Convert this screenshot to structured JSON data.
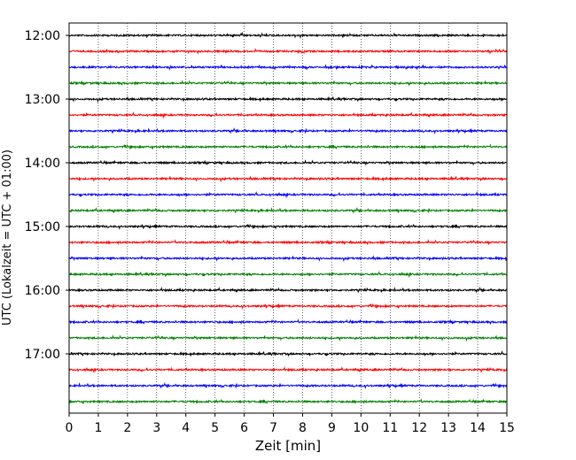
{
  "chart_data": {
    "type": "line",
    "title": "",
    "xlabel": "Zeit  [min]",
    "ylabel": "UTC (Lokalzeit = UTC + 01:00)",
    "xlim": [
      0,
      15
    ],
    "x_ticks": [
      "0",
      "1",
      "2",
      "3",
      "4",
      "5",
      "6",
      "7",
      "8",
      "9",
      "10",
      "11",
      "12",
      "13",
      "14",
      "15"
    ],
    "y_tick_labels": [
      "12:00",
      "13:00",
      "14:00",
      "15:00",
      "16:00",
      "17:00"
    ],
    "grid": "vertical-dotted",
    "trace_colors": [
      "#000000",
      "#ff0000",
      "#0000ff",
      "#008000"
    ],
    "traces": [
      {
        "start": "12:00",
        "color": "#000000"
      },
      {
        "start": "12:15",
        "color": "#ff0000"
      },
      {
        "start": "12:30",
        "color": "#0000ff"
      },
      {
        "start": "12:45",
        "color": "#008000"
      },
      {
        "start": "13:00",
        "color": "#000000"
      },
      {
        "start": "13:15",
        "color": "#ff0000"
      },
      {
        "start": "13:30",
        "color": "#0000ff"
      },
      {
        "start": "13:45",
        "color": "#008000"
      },
      {
        "start": "14:00",
        "color": "#000000"
      },
      {
        "start": "14:15",
        "color": "#ff0000"
      },
      {
        "start": "14:30",
        "color": "#0000ff"
      },
      {
        "start": "14:45",
        "color": "#008000"
      },
      {
        "start": "15:00",
        "color": "#000000"
      },
      {
        "start": "15:15",
        "color": "#ff0000"
      },
      {
        "start": "15:30",
        "color": "#0000ff"
      },
      {
        "start": "15:45",
        "color": "#008000"
      },
      {
        "start": "16:00",
        "color": "#000000"
      },
      {
        "start": "16:15",
        "color": "#ff0000"
      },
      {
        "start": "16:30",
        "color": "#0000ff"
      },
      {
        "start": "16:45",
        "color": "#008000"
      },
      {
        "start": "17:00",
        "color": "#000000"
      },
      {
        "start": "17:15",
        "color": "#ff0000"
      },
      {
        "start": "17:30",
        "color": "#0000ff"
      },
      {
        "start": "17:45",
        "color": "#008000"
      }
    ]
  }
}
